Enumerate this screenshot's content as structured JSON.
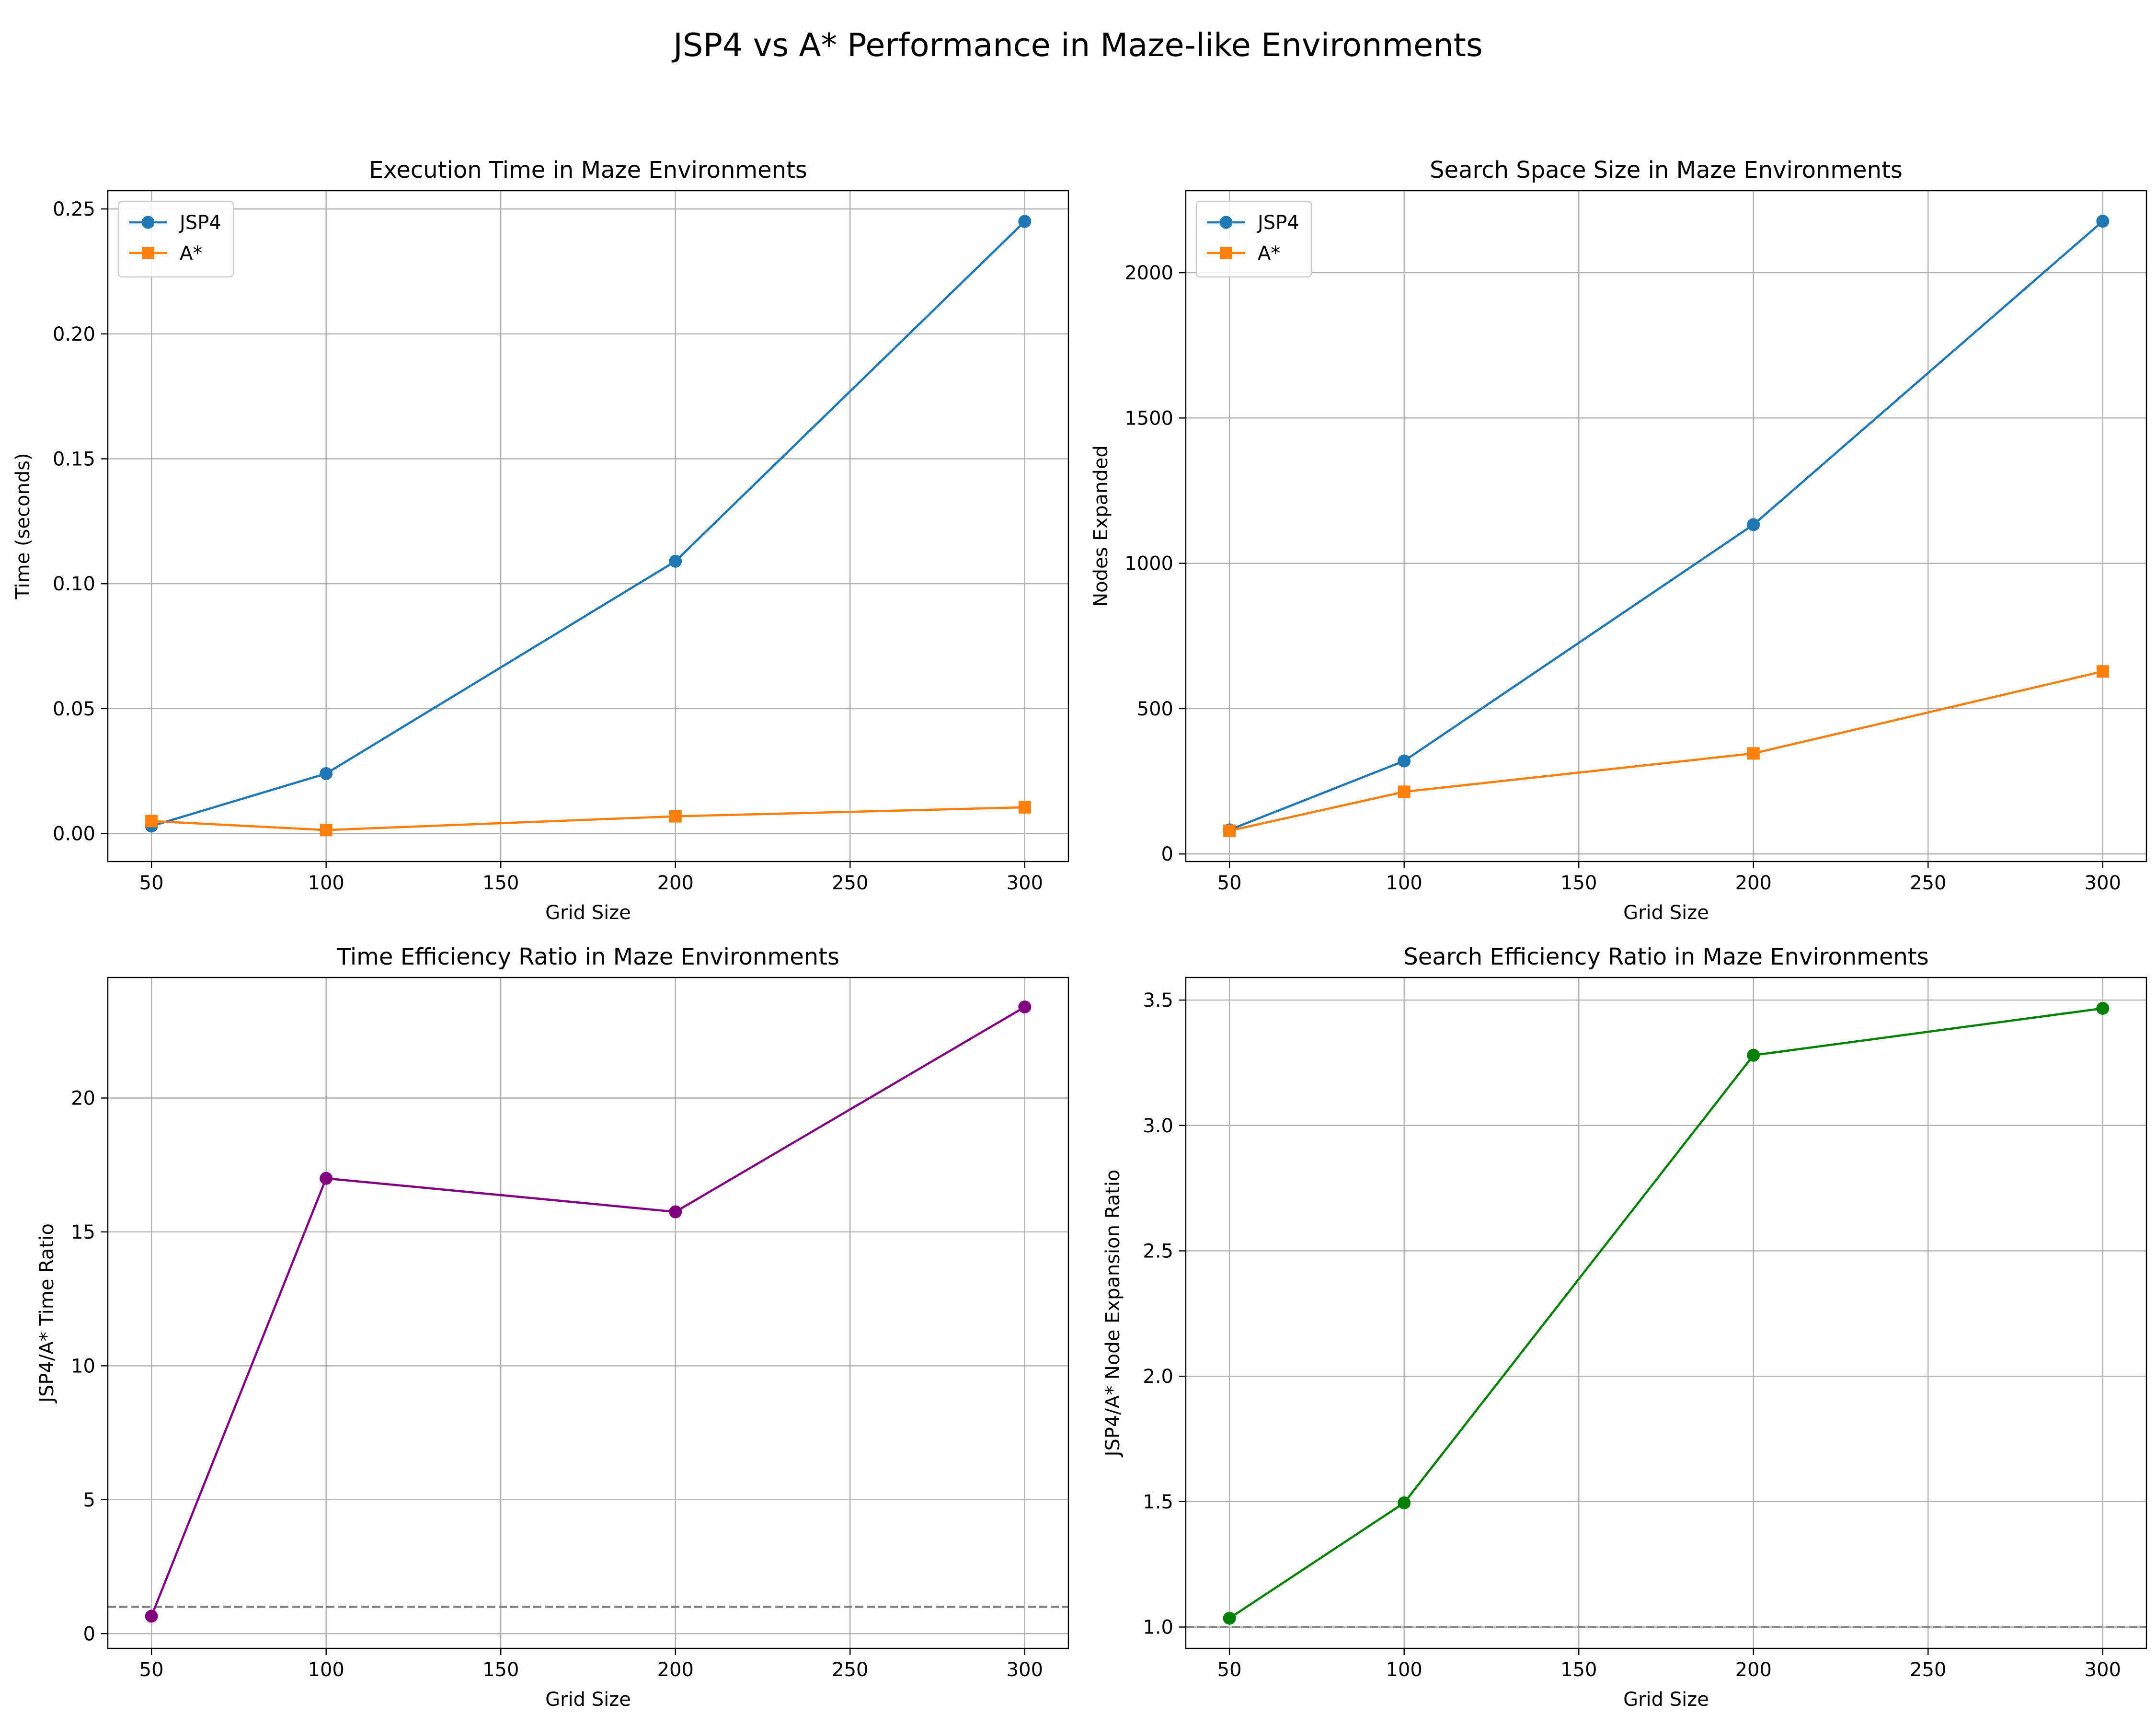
{
  "figure": {
    "suptitle": "JSP4 vs A* Performance in Maze-like Environments"
  },
  "colors": {
    "jsp4": "#1f77b4",
    "astar": "#ff7f0e",
    "time_ratio": "#800080",
    "search_ratio": "#008000",
    "grid": "#b0b0b0",
    "reference": "#808080"
  },
  "chart_data": [
    {
      "type": "line",
      "title": "Execution Time in Maze Environments",
      "xlabel": "Grid Size",
      "ylabel": "Time (seconds)",
      "x": [
        50,
        100,
        200,
        300
      ],
      "xlim": [
        37.5,
        312.5
      ],
      "ylim": [
        -0.0112,
        0.2573
      ],
      "xticks": [
        50,
        100,
        150,
        200,
        250,
        300
      ],
      "yticks": [
        0.0,
        0.05,
        0.1,
        0.15,
        0.2,
        0.25
      ],
      "ytick_labels": [
        "0.00",
        "0.05",
        "0.10",
        "0.15",
        "0.20",
        "0.25"
      ],
      "grid": true,
      "legend": "top-left",
      "series": [
        {
          "name": "JSP4",
          "values": [
            0.003,
            0.024,
            0.109,
            0.245
          ],
          "color": "#1f77b4",
          "marker": "circle"
        },
        {
          "name": "A*",
          "values": [
            0.005,
            0.0014,
            0.0069,
            0.0105
          ],
          "color": "#ff7f0e",
          "marker": "square"
        }
      ]
    },
    {
      "type": "line",
      "title": "Search Space Size in Maze Environments",
      "xlabel": "Grid Size",
      "ylabel": "Nodes Expanded",
      "x": [
        50,
        100,
        200,
        300
      ],
      "xlim": [
        37.5,
        312.5
      ],
      "ylim": [
        -26,
        2282
      ],
      "xticks": [
        50,
        100,
        150,
        200,
        250,
        300
      ],
      "yticks": [
        0,
        500,
        1000,
        1500,
        2000
      ],
      "ytick_labels": [
        "0",
        "500",
        "1000",
        "1500",
        "2000"
      ],
      "grid": true,
      "legend": "top-left",
      "series": [
        {
          "name": "JSP4",
          "values": [
            83,
            320,
            1133,
            2177
          ],
          "color": "#1f77b4",
          "marker": "circle"
        },
        {
          "name": "A*",
          "values": [
            80,
            214,
            346,
            628
          ],
          "color": "#ff7f0e",
          "marker": "square"
        }
      ]
    },
    {
      "type": "line",
      "title": "Time Efficiency Ratio in Maze Environments",
      "xlabel": "Grid Size",
      "ylabel": "JSP4/A* Time Ratio",
      "x": [
        50,
        100,
        200,
        300
      ],
      "xlim": [
        37.5,
        312.5
      ],
      "ylim": [
        -0.55,
        24.5
      ],
      "xticks": [
        50,
        100,
        150,
        200,
        250,
        300
      ],
      "yticks": [
        0,
        5,
        10,
        15,
        20
      ],
      "ytick_labels": [
        "0",
        "5",
        "10",
        "15",
        "20"
      ],
      "grid": true,
      "reference_line": 1,
      "series": [
        {
          "values": [
            0.65,
            17.0,
            15.75,
            23.4
          ],
          "color": "#800080",
          "marker": "circle"
        }
      ]
    },
    {
      "type": "line",
      "title": "Search Efficiency Ratio in Maze Environments",
      "xlabel": "Grid Size",
      "ylabel": "JSP4/A* Node Expansion Ratio",
      "x": [
        50,
        100,
        200,
        300
      ],
      "xlim": [
        37.5,
        312.5
      ],
      "ylim": [
        0.915,
        3.59
      ],
      "xticks": [
        50,
        100,
        150,
        200,
        250,
        300
      ],
      "yticks": [
        1.0,
        1.5,
        2.0,
        2.5,
        3.0,
        3.5
      ],
      "ytick_labels": [
        "1.0",
        "1.5",
        "2.0",
        "2.5",
        "3.0",
        "3.5"
      ],
      "grid": true,
      "reference_line": 1,
      "series": [
        {
          "values": [
            1.035,
            1.495,
            3.28,
            3.467
          ],
          "color": "#008000",
          "marker": "circle"
        }
      ]
    }
  ]
}
